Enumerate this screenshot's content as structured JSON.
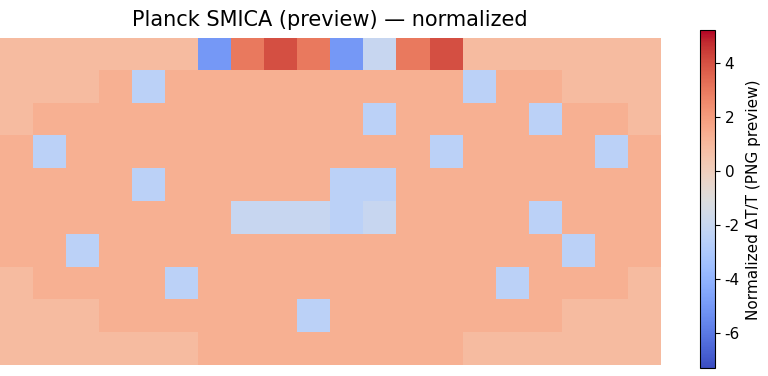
{
  "chart_data": {
    "type": "heatmap",
    "title": "Planck SMICA (preview) — normalized",
    "colorbar_label": "Normalized ΔT/T (PNG preview)",
    "color": "coolwarm",
    "tick_labels": false,
    "clim": [
      -7.3,
      5.2
    ],
    "cticks": [
      -6,
      -4,
      -2,
      0,
      2,
      4
    ],
    "cells": [
      [
        0.9,
        0.9,
        0.9,
        0.9,
        0.9,
        0.9,
        -5,
        3,
        4,
        3,
        -5,
        -2,
        3,
        4,
        0.9,
        0.9,
        0.9,
        0.9,
        0.9,
        0.9
      ],
      [
        0.9,
        0.9,
        0.9,
        1.3,
        -2.5,
        1.3,
        1.3,
        1.3,
        1.3,
        1.3,
        1.3,
        1.3,
        1.3,
        1.3,
        -2.5,
        1.3,
        1.3,
        0.9,
        0.9,
        0.9
      ],
      [
        0.9,
        1.3,
        1.3,
        1.3,
        1.3,
        1.3,
        1.3,
        1.3,
        1.3,
        1.3,
        1.3,
        -2.5,
        1.3,
        1.3,
        1.3,
        1.3,
        -2.5,
        1.3,
        1.3,
        0.9
      ],
      [
        1.3,
        -2.5,
        1.3,
        1.3,
        1.3,
        1.3,
        1.3,
        1.3,
        1.3,
        1.3,
        1.3,
        1.3,
        1.3,
        -2.5,
        1.3,
        1.3,
        1.3,
        1.3,
        -2.5,
        1.3
      ],
      [
        1.3,
        1.3,
        1.3,
        1.3,
        -2.5,
        1.3,
        1.3,
        1.3,
        1.3,
        1.3,
        -2.5,
        -2.5,
        1.3,
        1.3,
        1.3,
        1.3,
        1.3,
        1.3,
        1.3,
        1.3
      ],
      [
        1.3,
        1.3,
        1.3,
        1.3,
        1.3,
        1.3,
        1.3,
        -2,
        -2,
        -2,
        -2.5,
        -2,
        1.3,
        1.3,
        1.3,
        1.3,
        -2.5,
        1.3,
        1.3,
        1.3
      ],
      [
        1.3,
        1.3,
        -2.5,
        1.3,
        1.3,
        1.3,
        1.3,
        1.3,
        1.3,
        1.3,
        1.3,
        1.3,
        1.3,
        1.3,
        1.3,
        1.3,
        1.3,
        -2.5,
        1.3,
        1.3
      ],
      [
        0.9,
        1.3,
        1.3,
        1.3,
        1.3,
        -2.5,
        1.3,
        1.3,
        1.3,
        1.3,
        1.3,
        1.3,
        1.3,
        1.3,
        1.3,
        -2.5,
        1.3,
        1.3,
        1.3,
        0.9
      ],
      [
        0.9,
        0.9,
        0.9,
        1.3,
        1.3,
        1.3,
        1.3,
        1.3,
        1.3,
        -2.5,
        1.3,
        1.3,
        1.3,
        1.3,
        1.3,
        1.3,
        1.3,
        0.9,
        0.9,
        0.9
      ],
      [
        0.9,
        0.9,
        0.9,
        0.9,
        0.9,
        0.9,
        1.3,
        1.3,
        1.3,
        1.3,
        1.3,
        1.3,
        1.3,
        1.3,
        0.9,
        0.9,
        0.9,
        0.9,
        0.9,
        0.9
      ]
    ]
  }
}
